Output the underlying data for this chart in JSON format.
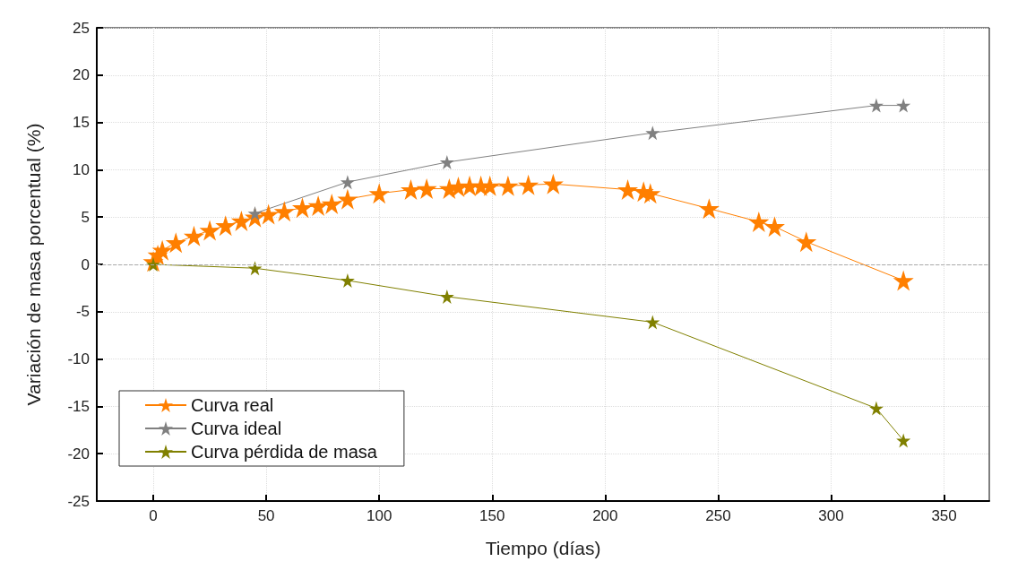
{
  "chart_data": {
    "type": "line",
    "xlabel": "Tiempo (días)",
    "ylabel": "Variación de masa porcentual (%)",
    "xlim": [
      -25,
      370
    ],
    "xticks": [
      0,
      50,
      100,
      150,
      200,
      250,
      300,
      350
    ],
    "ylim": [
      -25,
      25
    ],
    "yticks": [
      -25,
      -20,
      -15,
      -10,
      -5,
      0,
      5,
      10,
      15,
      20,
      25
    ],
    "grid": true,
    "legend": "bottom left",
    "marker": "star",
    "line_style": "solid",
    "ref_lines": [
      {
        "axis": "y",
        "value": 0,
        "color": "#aaaaaa",
        "line_style": "dashed"
      }
    ],
    "series": [
      {
        "name": "Curva real",
        "color": "#ff7f00",
        "x": [
          0,
          2,
          4,
          10,
          18,
          25,
          32,
          39,
          45,
          51,
          58,
          66,
          73,
          79,
          86,
          100,
          114,
          121,
          131,
          135,
          140,
          145,
          149,
          157,
          166,
          177,
          210,
          217,
          220,
          246,
          268,
          275,
          289,
          332
        ],
        "values": [
          0.3,
          1,
          1.5,
          2.3,
          3,
          3.6,
          4.1,
          4.6,
          5,
          5.3,
          5.6,
          6,
          6.2,
          6.4,
          6.9,
          7.5,
          7.9,
          8,
          8,
          8.2,
          8.3,
          8.3,
          8.3,
          8.3,
          8.4,
          8.5,
          7.9,
          7.7,
          7.5,
          5.9,
          4.5,
          4,
          2.4,
          -1.7
        ]
      },
      {
        "name": "Curva ideal",
        "color": "#808080",
        "x": [
          45,
          86,
          130,
          221,
          320,
          332
        ],
        "values": [
          5.4,
          8.7,
          10.8,
          13.9,
          16.8,
          16.8
        ]
      },
      {
        "name": "Curva pérdida de masa",
        "color": "#808000",
        "x": [
          0,
          45,
          86,
          130,
          221,
          320,
          332
        ],
        "values": [
          0,
          -0.4,
          -1.7,
          -3.4,
          -6.1,
          -15.2,
          -18.6
        ]
      }
    ]
  }
}
